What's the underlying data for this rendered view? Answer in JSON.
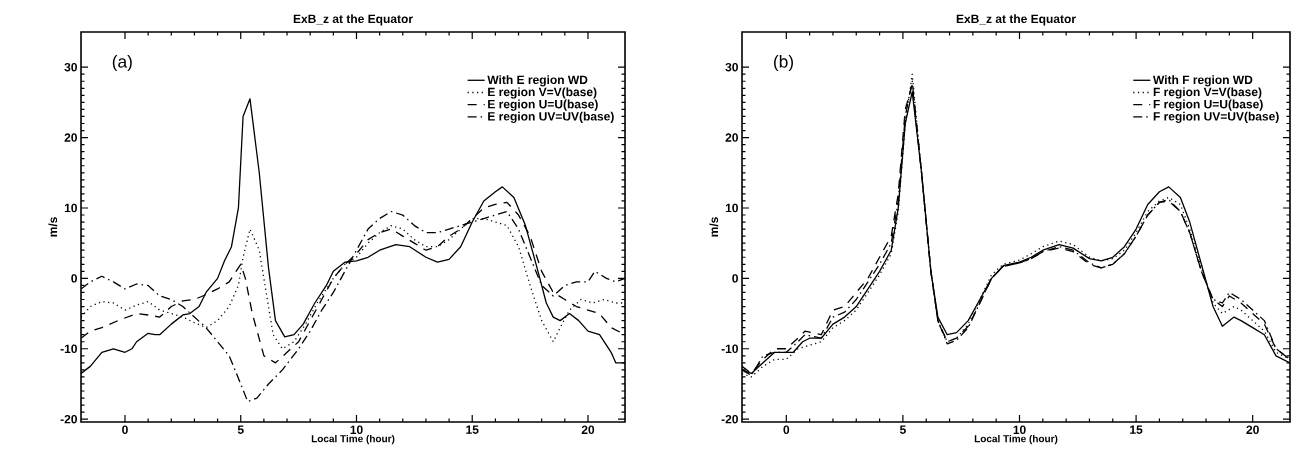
{
  "chart_data": [
    {
      "type": "line",
      "title": "ExB_z at the Equator",
      "xlabel": "Local Time (hour)",
      "ylabel": "m/s",
      "annotations": [
        "(a)"
      ],
      "xlim": [
        -1.9,
        21.6
      ],
      "ylim": [
        -20.4,
        35
      ],
      "xticks": [
        0,
        5,
        10,
        15,
        20
      ],
      "yticks": [
        -20,
        -10,
        0,
        10,
        20,
        30
      ],
      "grid": false,
      "legend": "top right",
      "series": [
        {
          "name": "With E region WD",
          "color": "#000000",
          "line_style": "solid",
          "x": [
            -1.9,
            -1.5,
            -1,
            -0.5,
            0,
            0.3,
            0.5,
            1,
            1.3,
            1.5,
            2,
            2.5,
            2.8,
            3.2,
            3.5,
            4,
            4.3,
            4.6,
            4.9,
            5.1,
            5.4,
            5.8,
            6.2,
            6.5,
            6.9,
            7.3,
            7.7,
            8.2,
            8.7,
            9,
            9.5,
            10,
            10.5,
            11,
            11.7,
            12.3,
            13,
            13.5,
            14,
            14.5,
            15,
            15.5,
            16,
            16.3,
            16.8,
            17.3,
            17.8,
            18.2,
            18.5,
            18.8,
            19.2,
            19.6,
            20,
            20.5,
            21,
            21.2,
            21.6
          ],
          "values": [
            -13.5,
            -12.5,
            -10.5,
            -10,
            -10.5,
            -10,
            -9,
            -7.8,
            -8,
            -8,
            -6.5,
            -5.2,
            -5,
            -4,
            -2,
            0,
            2.5,
            4.5,
            10,
            23,
            25.5,
            15,
            1.5,
            -6,
            -8.3,
            -8,
            -6.5,
            -3.5,
            -1,
            1,
            2.3,
            2.5,
            3,
            4,
            4.8,
            4.5,
            3,
            2.3,
            2.7,
            4.5,
            8,
            11,
            12.3,
            13,
            11.5,
            7.5,
            1.5,
            -3.5,
            -5.5,
            -6,
            -5,
            -6,
            -7.5,
            -8,
            -10.5,
            -12,
            -12
          ]
        },
        {
          "name": "E region V=V(base)",
          "color": "#000000",
          "line_style": "dotted",
          "x": [
            -1.9,
            -1.5,
            -1,
            -0.5,
            0,
            0.5,
            1,
            1.5,
            2,
            2.5,
            3,
            3.5,
            4,
            4.5,
            4.9,
            5.1,
            5.4,
            5.8,
            6.1,
            6.4,
            6.8,
            7.3,
            7.8,
            8.3,
            9,
            9.5,
            10,
            10.5,
            11,
            11.5,
            12,
            12.5,
            13,
            13.5,
            14,
            14.5,
            15,
            15.5,
            16,
            16.5,
            17,
            17.5,
            18,
            18.5,
            18.8,
            19.2,
            19.7,
            20.2,
            20.7,
            21.2,
            21.6
          ],
          "values": [
            -5.5,
            -4,
            -3.3,
            -3.5,
            -4.5,
            -3.8,
            -3.3,
            -4.5,
            -5,
            -5.5,
            -6.3,
            -7,
            -6,
            -4,
            -1,
            3,
            7,
            4,
            -2,
            -8,
            -10,
            -9,
            -6.5,
            -3.5,
            0,
            2,
            3,
            5,
            6.5,
            7.5,
            7,
            5.5,
            4.5,
            4.5,
            5.5,
            7,
            8.5,
            8.5,
            8,
            7.5,
            4.5,
            -1,
            -6,
            -9,
            -7,
            -4.5,
            -3,
            -3.5,
            -3,
            -3.5,
            -3.5
          ]
        },
        {
          "name": "E region U=U(base)",
          "color": "#000000",
          "line_style": "dashed",
          "x": [
            -1.9,
            -1.5,
            -1,
            -0.3,
            0.5,
            1,
            1.5,
            2,
            2.5,
            3,
            3.5,
            4,
            4.5,
            5,
            5.2,
            5.5,
            6,
            6.5,
            7,
            7.5,
            8,
            8.5,
            9,
            9.5,
            10,
            10.5,
            11,
            11.5,
            12,
            12.5,
            13,
            13.5,
            14,
            14.5,
            15,
            15.5,
            16,
            16.5,
            17,
            17.5,
            18,
            18.5,
            19,
            19.5,
            20,
            20.5,
            21,
            21.6
          ],
          "values": [
            -8.5,
            -7.5,
            -7,
            -6,
            -5,
            -5.2,
            -5.5,
            -4,
            -3.2,
            -3,
            -2.3,
            -1.5,
            -0.5,
            2,
            0,
            -5,
            -11,
            -12,
            -10.5,
            -9,
            -6,
            -3,
            0,
            2,
            3.5,
            5.5,
            6.5,
            7,
            6,
            5,
            4,
            4.5,
            6,
            7,
            8.5,
            10,
            10.5,
            10.8,
            9,
            6,
            1,
            -2,
            -3,
            -4,
            -4.5,
            -5,
            -7,
            -8
          ]
        },
        {
          "name": "E region UV=UV(base)",
          "color": "#000000",
          "line_style": "dashdot",
          "x": [
            -1.9,
            -1.5,
            -1,
            -0.5,
            0,
            0.5,
            1,
            1.5,
            2,
            2.5,
            3,
            3.5,
            4,
            4.5,
            5,
            5.3,
            5.7,
            6.2,
            6.8,
            7.5,
            8,
            8.5,
            9,
            9.5,
            10,
            10.5,
            11,
            11.5,
            12,
            12.5,
            13,
            13.5,
            14,
            14.5,
            15,
            15.5,
            16,
            16.5,
            17,
            17.5,
            18,
            18.5,
            19,
            19.5,
            20,
            20.3,
            20.8,
            21.2,
            21.6
          ],
          "values": [
            -1.5,
            -0.5,
            0.3,
            -0.5,
            -1.5,
            -0.8,
            -1,
            -2.5,
            -3,
            -4,
            -5.5,
            -7,
            -9,
            -11,
            -15,
            -17.5,
            -17,
            -15,
            -13,
            -10,
            -7.5,
            -4.5,
            -2,
            1,
            4,
            7,
            8.5,
            9.5,
            9,
            7.5,
            6.5,
            6.5,
            7,
            7.5,
            8,
            8.5,
            9,
            9.5,
            7,
            3,
            -1,
            -2.5,
            -1,
            -0.5,
            -0.5,
            1,
            0,
            -0.5,
            0
          ]
        }
      ]
    },
    {
      "type": "line",
      "title": "ExB_z at the Equator",
      "xlabel": "Local Time (hour)",
      "ylabel": "m/s",
      "annotations": [
        "(b)"
      ],
      "xlim": [
        -1.9,
        21.6
      ],
      "ylim": [
        -20.4,
        35
      ],
      "xticks": [
        0,
        5,
        10,
        15,
        20
      ],
      "yticks": [
        -20,
        -10,
        0,
        10,
        20,
        30
      ],
      "grid": false,
      "legend": "top right",
      "series": [
        {
          "name": "With F region WD",
          "color": "#000000",
          "line_style": "solid",
          "x": [
            -1.9,
            -1.5,
            -1,
            -0.5,
            0,
            0.3,
            0.7,
            1,
            1.5,
            2,
            2.5,
            3,
            3.5,
            4,
            4.5,
            4.8,
            5.1,
            5.4,
            5.8,
            6.2,
            6.5,
            6.9,
            7.3,
            7.8,
            8.3,
            8.8,
            9.3,
            10,
            10.5,
            11,
            11.7,
            12.3,
            13,
            13.5,
            14,
            14.5,
            15,
            15.5,
            16,
            16.4,
            16.9,
            17.3,
            17.8,
            18.3,
            18.7,
            19.2,
            19.5,
            20,
            20.5,
            21,
            21.6
          ],
          "values": [
            -13,
            -13.5,
            -12,
            -10.5,
            -10.5,
            -10.5,
            -9,
            -8.5,
            -8.5,
            -6.5,
            -5.5,
            -4,
            -1.5,
            1,
            4,
            10,
            22,
            26.5,
            15,
            1,
            -5.5,
            -8,
            -7.7,
            -6,
            -3,
            0,
            1.8,
            2.3,
            3,
            4,
            4.8,
            4.3,
            2.8,
            2.5,
            3,
            4.5,
            7,
            10.5,
            12.3,
            13,
            11.5,
            8,
            2,
            -4,
            -6.8,
            -5.5,
            -6,
            -7,
            -8,
            -11,
            -12
          ]
        },
        {
          "name": "F region V=V(base)",
          "color": "#000000",
          "line_style": "dotted",
          "x": [
            -1.9,
            -1.5,
            -1,
            -0.5,
            0,
            0.5,
            1,
            1.5,
            2,
            2.5,
            3,
            3.5,
            4,
            4.5,
            4.8,
            5.1,
            5.4,
            5.8,
            6.2,
            6.5,
            6.9,
            7.3,
            7.8,
            8.3,
            8.8,
            9.3,
            10,
            10.5,
            11,
            11.7,
            12.3,
            13,
            13.5,
            14,
            14.5,
            15,
            15.5,
            16,
            16.4,
            16.9,
            17.3,
            17.8,
            18.3,
            18.7,
            19.2,
            19.5,
            20,
            20.5,
            21,
            21.6
          ],
          "values": [
            -13.5,
            -14,
            -12.5,
            -11.5,
            -11.5,
            -10,
            -9.5,
            -9,
            -7,
            -6,
            -4.5,
            -2,
            0.5,
            3.5,
            9.5,
            22,
            29,
            15,
            1,
            -6,
            -9,
            -8.5,
            -6.5,
            -3,
            0.5,
            2,
            2.6,
            3.5,
            4.5,
            5.3,
            4.8,
            3,
            2.5,
            2.8,
            4,
            6.5,
            9.5,
            11,
            11.5,
            10.5,
            7,
            1.5,
            -3.5,
            -5,
            -4,
            -4.5,
            -6,
            -7.5,
            -10.5,
            -11.5
          ]
        },
        {
          "name": "F region U=U(base)",
          "color": "#000000",
          "line_style": "dashed",
          "x": [
            -1.9,
            -1.5,
            -1,
            -0.5,
            0,
            0.5,
            0.8,
            1.5,
            2,
            2.5,
            3,
            3.5,
            4,
            4.5,
            4.8,
            5.1,
            5.4,
            5.8,
            6.2,
            6.5,
            6.9,
            7.3,
            7.8,
            8.3,
            8.8,
            9.3,
            10,
            10.5,
            11,
            11.7,
            12.3,
            13,
            13.5,
            14,
            14.5,
            15,
            15.5,
            16,
            16.4,
            16.9,
            17.3,
            17.8,
            18.3,
            18.7,
            19,
            19.5,
            20,
            20.5,
            21,
            21.6
          ],
          "values": [
            -12.5,
            -13.5,
            -11.5,
            -10,
            -10,
            -8.5,
            -7.5,
            -8,
            -4.5,
            -4,
            -2,
            0,
            3,
            6,
            12,
            24,
            27.5,
            15,
            1,
            -6,
            -9,
            -8.5,
            -6.8,
            -3.5,
            0,
            1.7,
            2.2,
            2.8,
            3.8,
            4.3,
            3.8,
            2,
            1.5,
            2,
            3.5,
            6,
            9,
            10.8,
            11,
            9.5,
            6.5,
            1,
            -3,
            -4,
            -2.5,
            -3.5,
            -5,
            -6.5,
            -10,
            -11.5
          ]
        },
        {
          "name": "F region UV=UV(base)",
          "color": "#000000",
          "line_style": "dashdot",
          "x": [
            -1.9,
            -1.5,
            -1,
            -0.5,
            0,
            0.5,
            0.8,
            1.5,
            2,
            2.5,
            3,
            3.5,
            4,
            4.5,
            4.8,
            5.1,
            5.4,
            5.8,
            6.2,
            6.5,
            6.9,
            7.3,
            7.8,
            8.3,
            8.8,
            9.3,
            10,
            10.5,
            11,
            11.7,
            12.3,
            13,
            13.5,
            14,
            14.5,
            15,
            15.5,
            16,
            16.4,
            16.9,
            17.3,
            17.8,
            18.3,
            18.7,
            19,
            19.5,
            20,
            20.5,
            21,
            21.6
          ],
          "values": [
            -13,
            -13.8,
            -11,
            -10.5,
            -10.5,
            -9,
            -8,
            -8.5,
            -5.5,
            -4.8,
            -3,
            -0.5,
            2,
            5,
            11,
            23,
            28,
            15,
            1,
            -6,
            -9.3,
            -8.8,
            -7,
            -3.5,
            0,
            1.7,
            2.2,
            2.8,
            3.8,
            4.5,
            4,
            2.2,
            1.5,
            2,
            3.5,
            6,
            9,
            10.8,
            11.2,
            9.5,
            6.5,
            1,
            -3,
            -3.5,
            -2,
            -3,
            -4.5,
            -6,
            -10,
            -11.5
          ]
        }
      ]
    }
  ]
}
